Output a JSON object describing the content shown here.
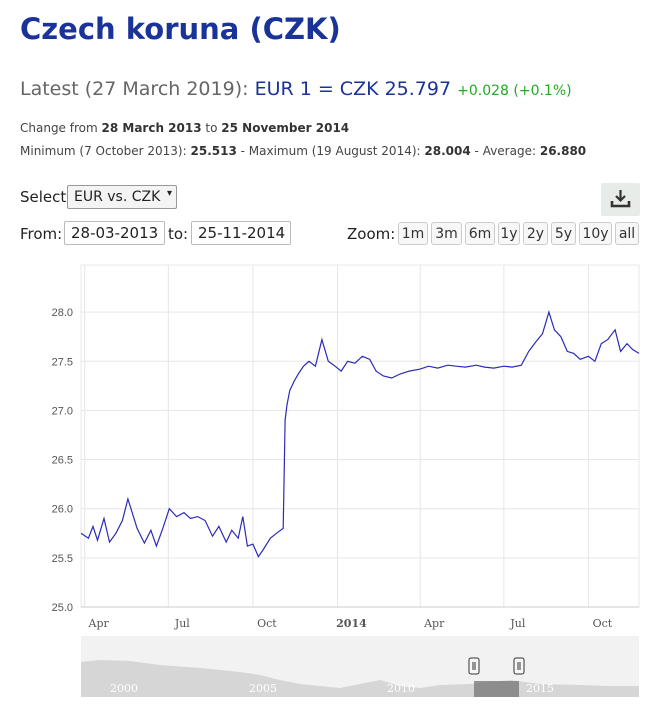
{
  "title": "Czech koruna (CZK)",
  "latest": {
    "prefix": "Latest (27 March 2019):",
    "rate": "EUR 1 = CZK 25.797",
    "change": "+0.028 (+0.1%)"
  },
  "stats": {
    "change_from_label": "Change from",
    "from_date": "28 March 2013",
    "to_word": "to",
    "to_date": "25 November 2014",
    "minimum_label": "Minimum (7 October 2013):",
    "minimum_value": "25.513",
    "maximum_label": "- Maximum (19 August 2014):",
    "maximum_value": "28.004",
    "average_label": "- Average:",
    "average_value": "26.880"
  },
  "controls": {
    "select_label": "Select:",
    "selected_pair": "EUR vs. CZK",
    "from_label": "From:",
    "from_value": "28-03-2013",
    "to_label": "to:",
    "to_value": "25-11-2014",
    "zoom_label": "Zoom:",
    "zoom_buttons": [
      "1m",
      "3m",
      "6m",
      "1y",
      "2y",
      "5y",
      "10y",
      "all"
    ],
    "download_icon": "download-icon"
  },
  "colors": {
    "title": "#1a3399",
    "series": "#2b2bb8",
    "change_positive": "#22aa22"
  },
  "chart_data": {
    "type": "line",
    "title": "",
    "xlabel": "",
    "ylabel": "",
    "ylim": [
      25.0,
      28.0
    ],
    "y_ticks": [
      "25.0",
      "25.5",
      "26.0",
      "26.5",
      "27.0",
      "27.5",
      "28.0"
    ],
    "x_ticks": [
      "Apr",
      "Jul",
      "Oct",
      "2014",
      "Apr",
      "Jul",
      "Oct"
    ],
    "xlim": [
      "2013-03-28",
      "2014-11-25"
    ],
    "grid": true,
    "legend": "none",
    "series": [
      {
        "x": [
          "2013-03-28",
          "2013-04-05",
          "2013-04-10",
          "2013-04-15",
          "2013-04-22",
          "2013-04-28",
          "2013-05-05",
          "2013-05-12",
          "2013-05-18",
          "2013-05-22",
          "2013-05-28",
          "2013-06-05",
          "2013-06-12",
          "2013-06-18",
          "2013-06-25",
          "2013-07-02",
          "2013-07-10",
          "2013-07-18",
          "2013-07-25",
          "2013-08-02",
          "2013-08-10",
          "2013-08-18",
          "2013-08-25",
          "2013-09-02",
          "2013-09-08",
          "2013-09-15",
          "2013-09-20",
          "2013-09-25",
          "2013-10-01",
          "2013-10-07",
          "2013-10-12",
          "2013-10-20",
          "2013-10-28",
          "2013-11-03",
          "2013-11-05",
          "2013-11-07",
          "2013-11-10",
          "2013-11-15",
          "2013-11-20",
          "2013-11-25",
          "2013-12-01",
          "2013-12-08",
          "2013-12-15",
          "2013-12-22",
          "2013-12-28",
          "2014-01-05",
          "2014-01-12",
          "2014-01-20",
          "2014-01-28",
          "2014-02-05",
          "2014-02-12",
          "2014-02-20",
          "2014-03-01",
          "2014-03-10",
          "2014-03-20",
          "2014-04-01",
          "2014-04-10",
          "2014-04-20",
          "2014-05-01",
          "2014-05-10",
          "2014-05-20",
          "2014-06-01",
          "2014-06-10",
          "2014-06-20",
          "2014-07-01",
          "2014-07-10",
          "2014-07-20",
          "2014-07-28",
          "2014-08-05",
          "2014-08-12",
          "2014-08-19",
          "2014-08-25",
          "2014-09-01",
          "2014-09-08",
          "2014-09-15",
          "2014-09-22",
          "2014-10-01",
          "2014-10-08",
          "2014-10-15",
          "2014-10-22",
          "2014-10-30",
          "2014-11-05",
          "2014-11-12",
          "2014-11-18",
          "2014-11-25"
        ],
        "values": [
          25.75,
          25.7,
          25.82,
          25.68,
          25.9,
          25.66,
          25.75,
          25.88,
          26.1,
          25.98,
          25.8,
          25.65,
          25.78,
          25.62,
          25.8,
          26.0,
          25.92,
          25.96,
          25.9,
          25.92,
          25.88,
          25.72,
          25.82,
          25.66,
          25.78,
          25.7,
          25.92,
          25.62,
          25.64,
          25.513,
          25.58,
          25.7,
          25.76,
          25.8,
          26.9,
          27.05,
          27.2,
          27.3,
          27.38,
          27.45,
          27.5,
          27.45,
          27.72,
          27.5,
          27.46,
          27.4,
          27.5,
          27.48,
          27.55,
          27.52,
          27.4,
          27.35,
          27.33,
          27.37,
          27.4,
          27.42,
          27.45,
          27.43,
          27.46,
          27.45,
          27.44,
          27.46,
          27.44,
          27.43,
          27.45,
          27.44,
          27.46,
          27.6,
          27.7,
          27.78,
          28.0,
          27.82,
          27.75,
          27.6,
          27.58,
          27.52,
          27.55,
          27.5,
          27.68,
          27.72,
          27.82,
          27.6,
          27.68,
          27.62,
          27.58
        ]
      }
    ],
    "navigator": {
      "year_labels": [
        "2000",
        "2005",
        "2010",
        "2015"
      ]
    }
  }
}
